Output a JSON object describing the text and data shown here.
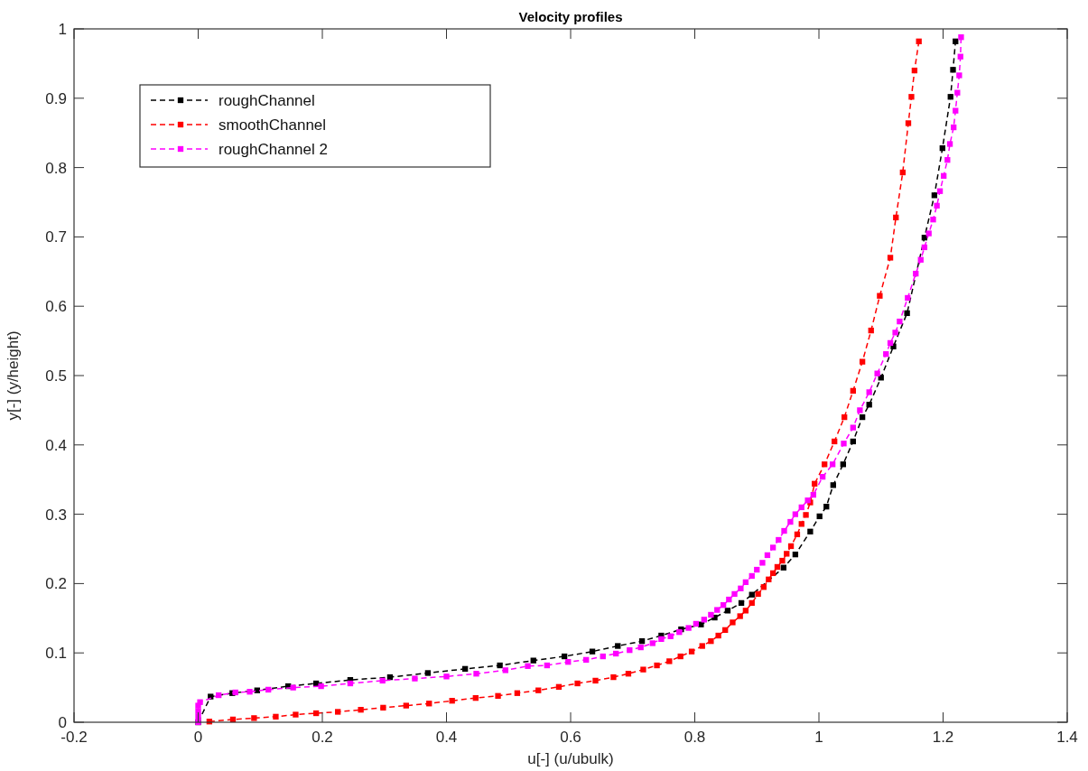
{
  "chart_data": {
    "type": "line",
    "title": "Velocity profiles",
    "xlabel": "u[-]  (u/ubulk)",
    "ylabel": "y[-]  (y/height)",
    "xlim": [
      -0.2,
      1.4
    ],
    "ylim": [
      0,
      1
    ],
    "xticks": [
      -0.2,
      0,
      0.2,
      0.4,
      0.6,
      0.8,
      1,
      1.2,
      1.4
    ],
    "yticks": [
      0,
      0.1,
      0.2,
      0.3,
      0.4,
      0.5,
      0.6,
      0.7,
      0.8,
      0.9,
      1
    ],
    "grid": false,
    "legend": "top left",
    "marker": "square",
    "line_style": "dashed",
    "series": [
      {
        "name": "roughChannel",
        "color": "#000000",
        "x": [
          0,
          0.02,
          0.055,
          0.095,
          0.145,
          0.19,
          0.245,
          0.309,
          0.37,
          0.43,
          0.486,
          0.54,
          0.59,
          0.635,
          0.676,
          0.715,
          0.746,
          0.778,
          0.81,
          0.832,
          0.853,
          0.875,
          0.892,
          0.943,
          0.962,
          0.986,
          1.001,
          1.012,
          1.023,
          1.039,
          1.055,
          1.07,
          1.081,
          1.1,
          1.12,
          1.142,
          1.17,
          1.186,
          1.199,
          1.212,
          1.216,
          1.22
        ],
        "values": [
          0,
          0.037,
          0.042,
          0.046,
          0.052,
          0.056,
          0.061,
          0.065,
          0.071,
          0.077,
          0.082,
          0.089,
          0.095,
          0.102,
          0.11,
          0.117,
          0.125,
          0.134,
          0.141,
          0.151,
          0.161,
          0.172,
          0.184,
          0.223,
          0.242,
          0.275,
          0.297,
          0.311,
          0.342,
          0.372,
          0.405,
          0.44,
          0.458,
          0.497,
          0.542,
          0.59,
          0.699,
          0.76,
          0.828,
          0.902,
          0.941,
          0.982
        ]
      },
      {
        "name": "smoothChannel",
        "color": "#ff0000",
        "x": [
          0.018,
          0.056,
          0.09,
          0.125,
          0.157,
          0.19,
          0.225,
          0.262,
          0.298,
          0.335,
          0.372,
          0.409,
          0.447,
          0.483,
          0.514,
          0.548,
          0.581,
          0.611,
          0.64,
          0.669,
          0.693,
          0.717,
          0.739,
          0.759,
          0.777,
          0.795,
          0.812,
          0.826,
          0.838,
          0.849,
          0.861,
          0.873,
          0.882,
          0.892,
          0.902,
          0.911,
          0.919,
          0.926,
          0.933,
          0.941,
          0.948,
          0.955,
          0.965,
          0.972,
          0.979,
          0.986,
          0.993,
          1.009,
          1.025,
          1.041,
          1.055,
          1.07,
          1.084,
          1.098,
          1.115,
          1.124,
          1.135,
          1.144,
          1.149,
          1.154,
          1.161
        ],
        "values": [
          0.001,
          0.004,
          0.006,
          0.008,
          0.011,
          0.013,
          0.015,
          0.018,
          0.021,
          0.024,
          0.027,
          0.031,
          0.035,
          0.038,
          0.042,
          0.046,
          0.051,
          0.056,
          0.06,
          0.065,
          0.07,
          0.076,
          0.082,
          0.088,
          0.095,
          0.102,
          0.11,
          0.117,
          0.125,
          0.133,
          0.144,
          0.153,
          0.161,
          0.172,
          0.185,
          0.195,
          0.206,
          0.215,
          0.224,
          0.233,
          0.243,
          0.254,
          0.271,
          0.286,
          0.299,
          0.317,
          0.344,
          0.372,
          0.405,
          0.44,
          0.478,
          0.52,
          0.565,
          0.615,
          0.67,
          0.728,
          0.793,
          0.864,
          0.902,
          0.94,
          0.982
        ]
      },
      {
        "name": "roughChannel 2",
        "color": "#ff00ff",
        "x": [
          0,
          0,
          0,
          0,
          0.003,
          0.033,
          0.06,
          0.083,
          0.113,
          0.153,
          0.198,
          0.245,
          0.297,
          0.349,
          0.4,
          0.448,
          0.495,
          0.531,
          0.562,
          0.596,
          0.625,
          0.652,
          0.673,
          0.695,
          0.713,
          0.732,
          0.746,
          0.761,
          0.775,
          0.79,
          0.802,
          0.815,
          0.826,
          0.836,
          0.846,
          0.855,
          0.864,
          0.874,
          0.882,
          0.892,
          0.9,
          0.909,
          0.917,
          0.926,
          0.935,
          0.944,
          0.954,
          0.962,
          0.972,
          0.982,
          0.991,
          1.006,
          1.022,
          1.04,
          1.055,
          1.066,
          1.081,
          1.094,
          1.108,
          1.115,
          1.123,
          1.13,
          1.143,
          1.156,
          1.164,
          1.17,
          1.177,
          1.184,
          1.19,
          1.195,
          1.201,
          1.207,
          1.211,
          1.217,
          1.22,
          1.223,
          1.226,
          1.228,
          1.229
        ],
        "values": [
          0,
          0.008,
          0.016,
          0.024,
          0.029,
          0.039,
          0.043,
          0.044,
          0.047,
          0.05,
          0.052,
          0.056,
          0.06,
          0.063,
          0.066,
          0.07,
          0.075,
          0.081,
          0.082,
          0.087,
          0.09,
          0.095,
          0.099,
          0.104,
          0.108,
          0.114,
          0.12,
          0.124,
          0.13,
          0.136,
          0.142,
          0.148,
          0.155,
          0.162,
          0.169,
          0.177,
          0.185,
          0.193,
          0.202,
          0.211,
          0.22,
          0.23,
          0.241,
          0.252,
          0.263,
          0.276,
          0.289,
          0.3,
          0.31,
          0.32,
          0.328,
          0.354,
          0.372,
          0.402,
          0.425,
          0.45,
          0.476,
          0.503,
          0.531,
          0.547,
          0.562,
          0.578,
          0.612,
          0.647,
          0.667,
          0.685,
          0.705,
          0.725,
          0.745,
          0.766,
          0.788,
          0.811,
          0.834,
          0.858,
          0.882,
          0.908,
          0.933,
          0.96,
          0.988
        ]
      }
    ]
  }
}
